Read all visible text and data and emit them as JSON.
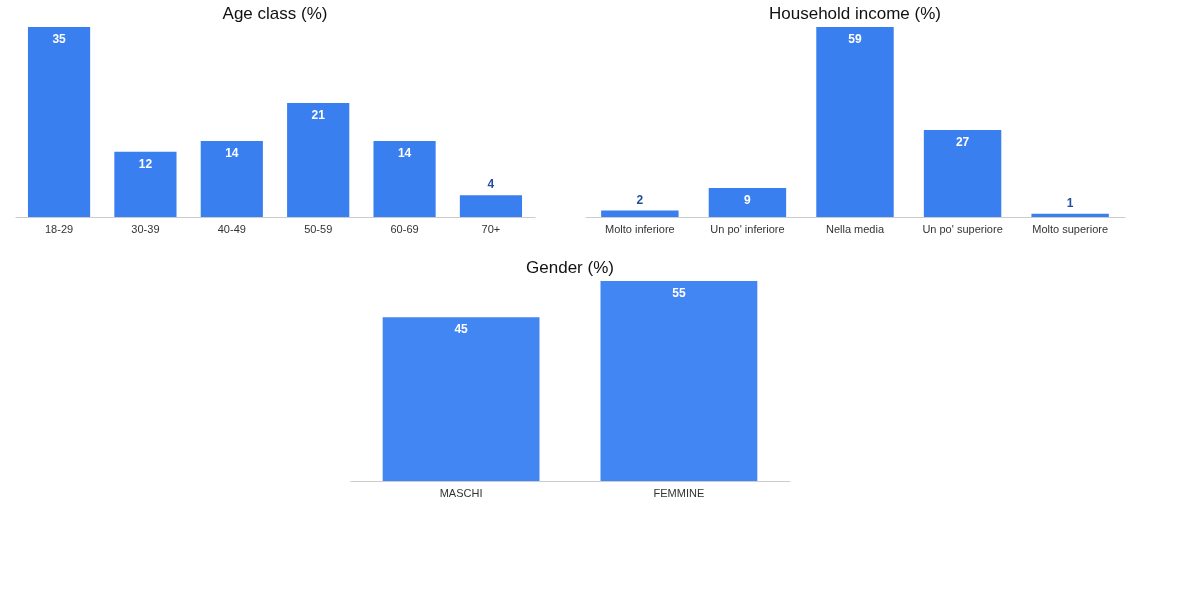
{
  "chart_data": [
    {
      "type": "bar",
      "title": "Age class (%)",
      "categories": [
        "18-29",
        "30-39",
        "40-49",
        "50-59",
        "60-69",
        "70+"
      ],
      "values": [
        35,
        12,
        14,
        21,
        14,
        4
      ],
      "color": "#3a7ff0",
      "data_labels": true
    },
    {
      "type": "bar",
      "title": "Household income (%)",
      "categories": [
        "Molto inferiore",
        "Un po' inferiore",
        "Nella media",
        "Un po' superiore",
        "Molto superiore"
      ],
      "values": [
        2,
        9,
        59,
        27,
        1
      ],
      "color": "#3a7ff0",
      "data_labels": true
    },
    {
      "type": "bar",
      "title": "Gender (%)",
      "categories": [
        "MASCHI",
        "FEMMINE"
      ],
      "values": [
        45,
        55
      ],
      "color": "#4286f4",
      "data_labels": true
    }
  ]
}
